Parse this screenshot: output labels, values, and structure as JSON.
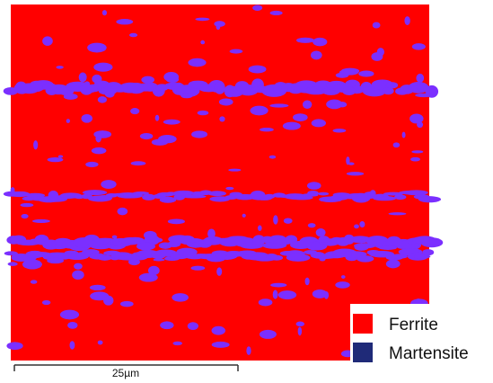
{
  "legend": {
    "items": [
      {
        "label": "Ferrite",
        "color": "#ff0000"
      },
      {
        "label": "Martensite",
        "color": "#1f2a78"
      }
    ]
  },
  "scale_bar": {
    "label": "25µm"
  }
}
